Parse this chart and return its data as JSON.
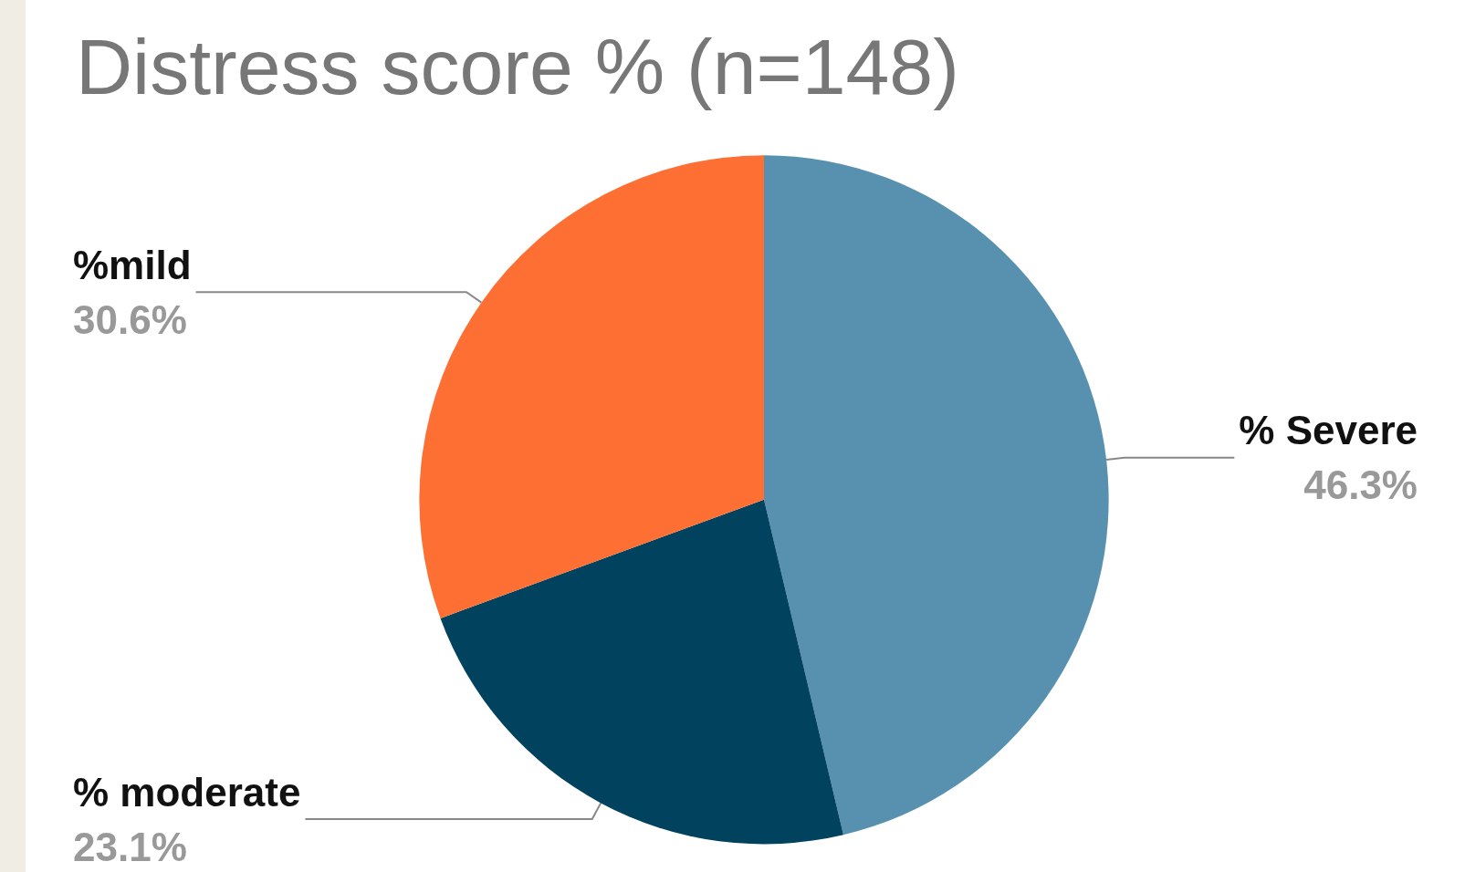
{
  "chart_data": {
    "type": "pie",
    "title": "Distress score % (n=148)",
    "categories": [
      "% Severe",
      "% moderate",
      "%mild"
    ],
    "values": [
      46.3,
      23.1,
      30.6
    ],
    "value_labels": [
      "46.3%",
      "23.1%",
      "30.6%"
    ],
    "colors": [
      "#5891b0",
      "#01425f",
      "#fd6f33"
    ],
    "legend": false
  }
}
